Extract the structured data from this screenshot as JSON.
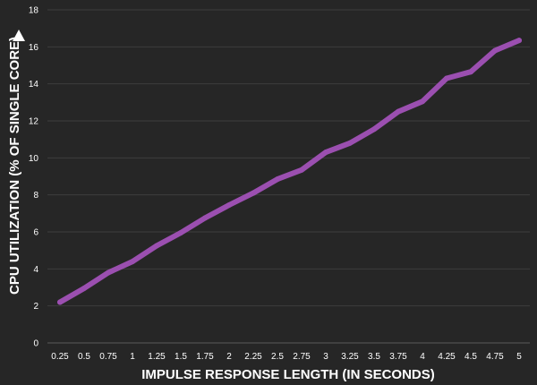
{
  "chart_data": {
    "type": "line",
    "x": [
      "0.25",
      "0.5",
      "0.75",
      "1",
      "1.25",
      "1.5",
      "1.75",
      "2",
      "2.25",
      "2.5",
      "2.75",
      "3",
      "3.25",
      "3.5",
      "3.75",
      "4",
      "4.25",
      "4.5",
      "4.75",
      "5"
    ],
    "series": [
      {
        "color": "#9b4fb0",
        "values": [
          2.2,
          2.95,
          3.8,
          4.4,
          5.25,
          5.95,
          6.75,
          7.45,
          8.1,
          8.85,
          9.35,
          10.3,
          10.8,
          11.55,
          12.5,
          13.05,
          14.3,
          14.65,
          15.8,
          16.35
        ]
      }
    ],
    "xlabel": "IMPULSE RESPONSE LENGTH (IN SECONDS)",
    "ylabel": "CPU UTILIZATION (% OF SINGLE CORE)",
    "ylim": [
      0,
      18
    ],
    "yticks": [
      "0",
      "2",
      "4",
      "6",
      "8",
      "10",
      "12",
      "14",
      "16",
      "18"
    ],
    "grid": true,
    "legend": "none"
  },
  "colors": {
    "background": "#262626",
    "grid": "#3d3d3d",
    "text": "#ffffff"
  }
}
